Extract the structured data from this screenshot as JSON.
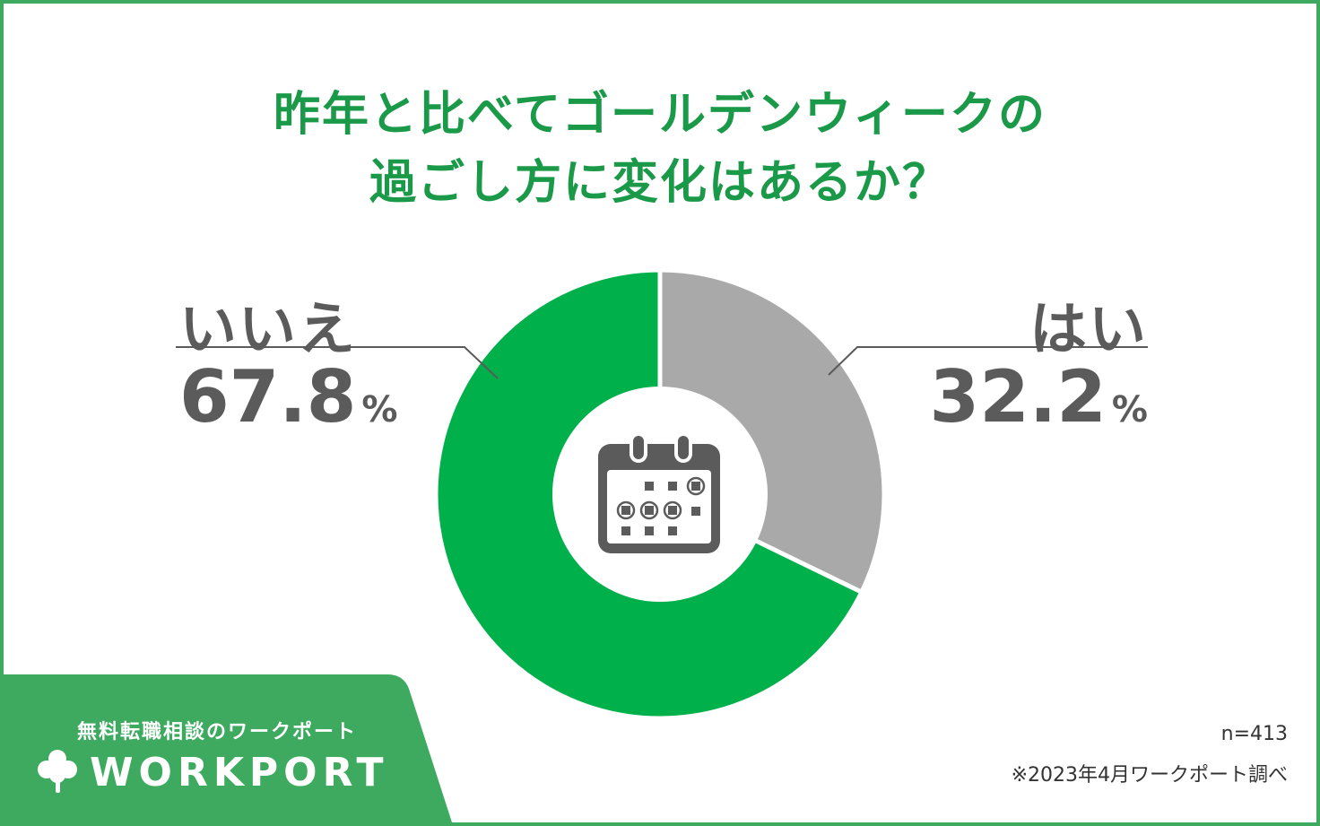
{
  "colors": {
    "accent": "#1a9a48",
    "no_slice": "#00b04b",
    "yes_slice": "#a9a9a9",
    "label_text": "#5b5b5b",
    "brand_bg": "#3daa5f",
    "icon": "#5b5b5b"
  },
  "chart_data": {
    "type": "pie",
    "title": "昨年と比べてゴールデンウィークの過ごし方に変化はあるか？",
    "title_lines": [
      "昨年と比べてゴールデンウィークの",
      "過ごし方に変化はあるか？"
    ],
    "donut": true,
    "center_icon": "calendar-icon",
    "slices": [
      {
        "label": "はい",
        "value": 32.2,
        "value_text": "32.2",
        "color": "#a9a9a9"
      },
      {
        "label": "いいえ",
        "value": 67.8,
        "value_text": "67.8",
        "color": "#00b04b"
      }
    ],
    "unit": "%",
    "legend": "none"
  },
  "brand": {
    "tagline": "無料転職相談のワークポート",
    "name": "WORKPORT",
    "logo_icon": "clover-icon"
  },
  "notes": {
    "sample": "n=413",
    "source": "※2023年4月ワークポート調べ"
  }
}
